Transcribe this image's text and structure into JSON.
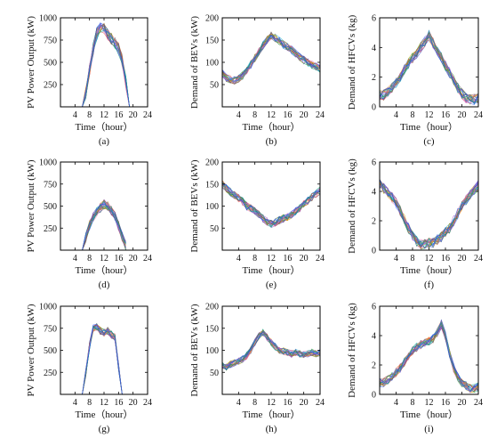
{
  "chart_data": [
    {
      "type": "line",
      "panel": "(a)",
      "xlabel": "Time（hour）",
      "ylabel": "PV Power Output (kW)",
      "xlim": [
        0,
        24
      ],
      "ylim": [
        0,
        1000
      ],
      "xticks": [
        4,
        8,
        12,
        16,
        20,
        24
      ],
      "yticks": [
        250,
        500,
        750,
        1000
      ],
      "x": [
        6,
        7,
        8,
        9,
        10,
        11,
        12,
        13,
        14,
        15,
        16,
        17,
        18,
        19
      ],
      "mean": [
        0,
        150,
        420,
        650,
        820,
        900,
        880,
        820,
        760,
        720,
        650,
        520,
        280,
        0
      ],
      "spread": 70,
      "traces": 25
    },
    {
      "type": "line",
      "panel": "(b)",
      "xlabel": "Time（hour）",
      "ylabel": "Demand of BEVs (kW)",
      "xlim": [
        0,
        24
      ],
      "ylim": [
        0,
        200
      ],
      "xticks": [
        4,
        8,
        12,
        16,
        20,
        24
      ],
      "yticks": [
        50,
        100,
        150,
        200
      ],
      "x": [
        0,
        1,
        2,
        3,
        4,
        5,
        6,
        7,
        8,
        9,
        10,
        11,
        12,
        13,
        14,
        15,
        16,
        17,
        18,
        19,
        20,
        21,
        22,
        23,
        24
      ],
      "mean": [
        75,
        65,
        62,
        60,
        63,
        70,
        82,
        95,
        110,
        125,
        138,
        150,
        160,
        155,
        148,
        140,
        135,
        128,
        120,
        112,
        105,
        100,
        95,
        90,
        85
      ],
      "spread": 9,
      "traces": 25
    },
    {
      "type": "line",
      "panel": "(c)",
      "xlabel": "Time（hour）",
      "ylabel": "Demand of HFCVs (kg)",
      "xlim": [
        0,
        24
      ],
      "ylim": [
        0,
        6
      ],
      "xticks": [
        4,
        8,
        12,
        16,
        20,
        24
      ],
      "yticks": [
        0,
        2,
        4,
        6
      ],
      "x": [
        0,
        1,
        2,
        3,
        4,
        5,
        6,
        7,
        8,
        9,
        10,
        11,
        12,
        13,
        14,
        15,
        16,
        17,
        18,
        19,
        20,
        21,
        22,
        23,
        24
      ],
      "mean": [
        0.8,
        0.8,
        1.0,
        1.3,
        1.6,
        2.0,
        2.5,
        2.9,
        3.3,
        3.6,
        4.0,
        4.4,
        4.8,
        4.3,
        3.8,
        3.3,
        2.8,
        2.3,
        1.8,
        1.3,
        0.9,
        0.6,
        0.5,
        0.5,
        0.6
      ],
      "spread": 0.35,
      "traces": 25
    },
    {
      "type": "line",
      "panel": "(d)",
      "xlabel": "Time（hour）",
      "ylabel": "PV Power Output (kW)",
      "xlim": [
        0,
        24
      ],
      "ylim": [
        0,
        1000
      ],
      "xticks": [
        4,
        8,
        12,
        16,
        20,
        24
      ],
      "yticks": [
        250,
        500,
        750,
        1000
      ],
      "x": [
        6,
        7,
        8,
        9,
        10,
        11,
        12,
        13,
        14,
        15,
        16,
        17,
        18
      ],
      "mean": [
        0,
        150,
        280,
        380,
        430,
        480,
        520,
        500,
        450,
        380,
        280,
        150,
        50
      ],
      "spread": 55,
      "traces": 25
    },
    {
      "type": "line",
      "panel": "(e)",
      "xlabel": "Time（hour）",
      "ylabel": "Demand of BEVs (kW)",
      "xlim": [
        0,
        24
      ],
      "ylim": [
        0,
        200
      ],
      "xticks": [
        4,
        8,
        12,
        16,
        20,
        24
      ],
      "yticks": [
        50,
        100,
        150,
        200
      ],
      "x": [
        0,
        1,
        2,
        3,
        4,
        5,
        6,
        7,
        8,
        9,
        10,
        11,
        12,
        13,
        14,
        15,
        16,
        17,
        18,
        19,
        20,
        21,
        22,
        23,
        24
      ],
      "mean": [
        150,
        140,
        132,
        125,
        118,
        110,
        100,
        95,
        88,
        80,
        72,
        65,
        60,
        62,
        68,
        72,
        75,
        80,
        88,
        95,
        105,
        112,
        120,
        128,
        135
      ],
      "spread": 9,
      "traces": 25
    },
    {
      "type": "line",
      "panel": "(f)",
      "xlabel": "Time（hour）",
      "ylabel": "Demand of HFCVs (kg)",
      "xlim": [
        0,
        24
      ],
      "ylim": [
        0,
        6
      ],
      "xticks": [
        4,
        8,
        12,
        16,
        20,
        24
      ],
      "yticks": [
        0,
        2,
        4,
        6
      ],
      "x": [
        0,
        1,
        2,
        3,
        4,
        5,
        6,
        7,
        8,
        9,
        10,
        11,
        12,
        13,
        14,
        15,
        16,
        17,
        18,
        19,
        20,
        21,
        22,
        23,
        24
      ],
      "mean": [
        4.5,
        4.2,
        3.9,
        3.6,
        3.2,
        2.7,
        2.1,
        1.5,
        1.0,
        0.6,
        0.4,
        0.4,
        0.5,
        0.5,
        0.7,
        0.9,
        1.2,
        1.5,
        2.0,
        2.5,
        3.0,
        3.4,
        3.8,
        4.1,
        4.4
      ],
      "spread": 0.35,
      "traces": 25
    },
    {
      "type": "line",
      "panel": "(g)",
      "xlabel": "Time（hour）",
      "ylabel": "PV Power Output (kW)",
      "xlim": [
        0,
        24
      ],
      "ylim": [
        0,
        1000
      ],
      "xticks": [
        4,
        8,
        12,
        16,
        20,
        24
      ],
      "yticks": [
        250,
        500,
        750,
        1000
      ],
      "x": [
        6,
        7,
        8,
        9,
        10,
        11,
        12,
        13,
        14,
        15,
        16,
        17
      ],
      "mean": [
        0,
        250,
        550,
        750,
        760,
        720,
        700,
        720,
        680,
        650,
        320,
        0
      ],
      "spread": 45,
      "traces": 25
    },
    {
      "type": "line",
      "panel": "(h)",
      "xlabel": "Time（hour）",
      "ylabel": "Demand of BEVs (kW)",
      "xlim": [
        0,
        24
      ],
      "ylim": [
        0,
        200
      ],
      "xticks": [
        4,
        8,
        12,
        16,
        20,
        24
      ],
      "yticks": [
        50,
        100,
        150,
        200
      ],
      "x": [
        0,
        1,
        2,
        3,
        4,
        5,
        6,
        7,
        8,
        9,
        10,
        11,
        12,
        13,
        14,
        15,
        16,
        17,
        18,
        19,
        20,
        21,
        22,
        23,
        24
      ],
      "mean": [
        65,
        62,
        68,
        72,
        75,
        80,
        88,
        100,
        118,
        132,
        140,
        130,
        118,
        108,
        100,
        98,
        95,
        92,
        95,
        92,
        90,
        92,
        95,
        92,
        95
      ],
      "spread": 8,
      "traces": 25
    },
    {
      "type": "line",
      "panel": "(i)",
      "xlabel": "Time（hour）",
      "ylabel": "Demand of HFCVs (kg)",
      "xlim": [
        0,
        24
      ],
      "ylim": [
        0,
        6
      ],
      "xticks": [
        4,
        8,
        12,
        16,
        20,
        24
      ],
      "yticks": [
        0,
        2,
        4,
        6
      ],
      "x": [
        0,
        1,
        2,
        3,
        4,
        5,
        6,
        7,
        8,
        9,
        10,
        11,
        12,
        13,
        14,
        15,
        16,
        17,
        18,
        19,
        20,
        21,
        22,
        23,
        24
      ],
      "mean": [
        0.8,
        0.8,
        1.0,
        1.2,
        1.5,
        1.8,
        2.2,
        2.6,
        3.0,
        3.2,
        3.4,
        3.5,
        3.6,
        3.8,
        4.2,
        4.8,
        4.0,
        2.8,
        1.8,
        1.2,
        0.8,
        0.6,
        0.4,
        0.4,
        0.5
      ],
      "spread": 0.3,
      "traces": 25
    }
  ],
  "colors": {
    "traces": [
      "#1f4fd8",
      "#e04040",
      "#2ca02c",
      "#c8b400",
      "#9b4fc8",
      "#17b5c8",
      "#ff7f0e",
      "#6b6b6b",
      "#8c564b",
      "#e377c2",
      "#00a080",
      "#4060ff"
    ]
  }
}
